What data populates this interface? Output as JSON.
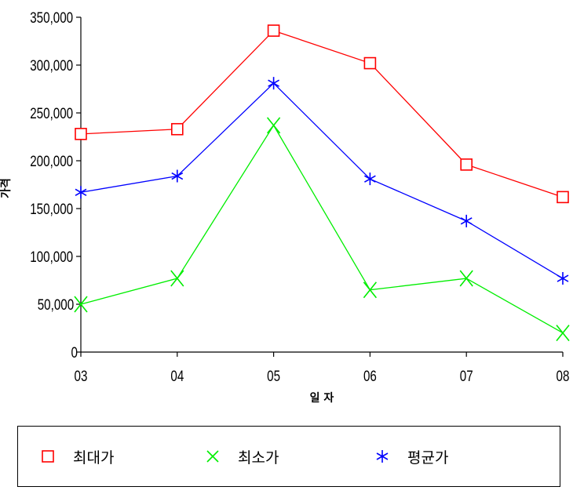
{
  "chart_data": {
    "type": "line",
    "categories": [
      "03",
      "04",
      "05",
      "06",
      "07",
      "08"
    ],
    "xlabel": "일 자",
    "ylabel": "가격",
    "ylim": [
      0,
      350000
    ],
    "yticks": [
      "0",
      "50,000",
      "100,000",
      "150,000",
      "200,000",
      "250,000",
      "300,000",
      "350,000"
    ],
    "grid": false,
    "legend_position": "bottom",
    "series": [
      {
        "name": "최대가",
        "color": "#ff0000",
        "marker": "square",
        "values": [
          228000,
          233000,
          336000,
          302000,
          196000,
          162000
        ]
      },
      {
        "name": "최소가",
        "color": "#00ee00",
        "marker": "x",
        "values": [
          50000,
          77000,
          237000,
          65000,
          77000,
          20000
        ]
      },
      {
        "name": "평균가",
        "color": "#0000ff",
        "marker": "asterisk",
        "values": [
          167000,
          184000,
          281000,
          181000,
          137000,
          77000
        ]
      }
    ]
  }
}
